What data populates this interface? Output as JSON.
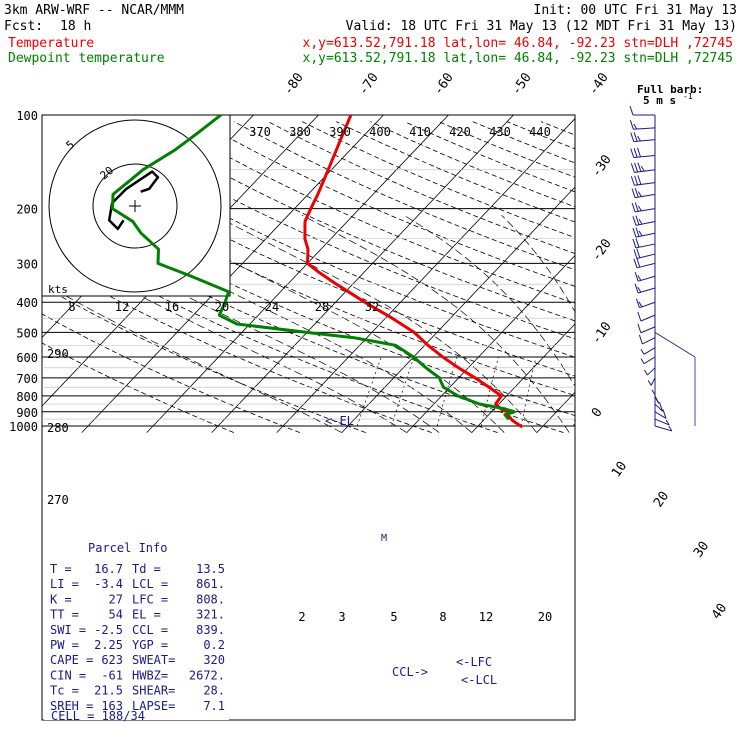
{
  "header": {
    "model": "3km ARW-WRF -- NCAR/MMM",
    "init": "Init: 00 UTC Fri 31 May 13",
    "fcst_label": "Fcst:",
    "fcst_value": "18 h",
    "valid": "Valid: 18 UTC Fri 31 May 13 (12 MDT Fri 31 May 13)",
    "temp_label": "Temperature",
    "dew_label": "Dewpoint temperature",
    "temp_loc": "x,y=613.52,791.18   lat,lon= 46.84, -92.23  stn=DLH ,72745",
    "dew_loc": "x,y=613.52,791.18   lat,lon= 46.84, -92.23  stn=DLH ,72745",
    "barb_note_1": "Full barb:",
    "barb_note_2": "5 m s",
    "barb_note_exp": "-1"
  },
  "colors": {
    "temperature": "#ee0000",
    "dewpoint": "#008000",
    "lines": "#000000",
    "barbs": "#1a1a8c",
    "text_header": "#000000"
  },
  "chart_data": {
    "type": "line",
    "diagram": "skew-T log-P",
    "pressure_ticks": [
      "100",
      "200",
      "300",
      "400",
      "500",
      "600",
      "700",
      "800",
      "900",
      "1000"
    ],
    "isotherm_labels": [
      "-80",
      "-70",
      "-60",
      "-50",
      "-40",
      "-30",
      "-20",
      "-10",
      "0",
      "10",
      "20",
      "30",
      "40"
    ],
    "theta_e_labels": [
      "370",
      "380",
      "390",
      "400",
      "410",
      "420",
      "430",
      "440"
    ],
    "theta_labels": [
      "290",
      "280",
      "270"
    ],
    "mixing_ratio_labels": [
      "2",
      "3",
      "5",
      "8",
      "12",
      "20"
    ],
    "hodograph": {
      "unit": "kts",
      "ring_labels": [
        "20",
        "5"
      ],
      "speed_axis": [
        "8",
        "12",
        "16",
        "20",
        "24",
        "28",
        "32"
      ],
      "trace_kts": [
        [
          -4,
          -5
        ],
        [
          -6,
          -8
        ],
        [
          -9,
          -5
        ],
        [
          -8,
          1
        ],
        [
          -3,
          6
        ],
        [
          6,
          12
        ],
        [
          8,
          10
        ],
        [
          5,
          6
        ],
        [
          2,
          5
        ]
      ]
    },
    "series": [
      {
        "name": "Temperature",
        "points": [
          [
            1003,
            16.7
          ],
          [
            960,
            14.5
          ],
          [
            935,
            13.5
          ],
          [
            910,
            12.6
          ],
          [
            900,
            13.0
          ],
          [
            890,
            11.5
          ],
          [
            870,
            10.5
          ],
          [
            850,
            9.5
          ],
          [
            800,
            9.2
          ],
          [
            750,
            6.0
          ],
          [
            700,
            2.5
          ],
          [
            650,
            -1.5
          ],
          [
            600,
            -5.5
          ],
          [
            550,
            -9.5
          ],
          [
            500,
            -13.5
          ],
          [
            450,
            -19.0
          ],
          [
            400,
            -25.5
          ],
          [
            350,
            -32.5
          ],
          [
            320,
            -37.0
          ],
          [
            300,
            -40.0
          ],
          [
            270,
            -42.0
          ],
          [
            250,
            -44.0
          ],
          [
            220,
            -46.5
          ],
          [
            200,
            -47.5
          ],
          [
            180,
            -48.5
          ],
          [
            150,
            -50.5
          ],
          [
            120,
            -53.0
          ],
          [
            100,
            -55.0
          ]
        ]
      },
      {
        "name": "Dewpoint temperature",
        "points": [
          [
            945,
            13.5
          ],
          [
            920,
            12.5
          ],
          [
            900,
            13.5
          ],
          [
            880,
            11.5
          ],
          [
            850,
            7.0
          ],
          [
            800,
            2.5
          ],
          [
            750,
            -1.0
          ],
          [
            700,
            -3.0
          ],
          [
            650,
            -6.5
          ],
          [
            600,
            -10.0
          ],
          [
            550,
            -14.5
          ],
          [
            520,
            -22.0
          ],
          [
            500,
            -30.0
          ],
          [
            470,
            -42.0
          ],
          [
            440,
            -46.0
          ],
          [
            400,
            -47.0
          ],
          [
            370,
            -48.0
          ],
          [
            330,
            -56.0
          ],
          [
            300,
            -63.0
          ],
          [
            270,
            -65.0
          ],
          [
            240,
            -70.0
          ],
          [
            220,
            -73.0
          ],
          [
            200,
            -78.0
          ],
          [
            180,
            -80.0
          ],
          [
            150,
            -79.0
          ],
          [
            130,
            -77.0
          ],
          [
            115,
            -76.0
          ],
          [
            100,
            -75.0
          ]
        ]
      }
    ],
    "annotations": {
      "el": "<-EL",
      "lfc": "<-LFC",
      "lcl": "<-LCL",
      "ccl": "CCL->",
      "marker": "M"
    },
    "wind_barbs": [
      {
        "p": 100,
        "spd": 10,
        "dir": 270
      },
      {
        "p": 110,
        "spd": 15,
        "dir": 260
      },
      {
        "p": 120,
        "spd": 25,
        "dir": 255
      },
      {
        "p": 135,
        "spd": 30,
        "dir": 255
      },
      {
        "p": 150,
        "spd": 35,
        "dir": 250
      },
      {
        "p": 165,
        "spd": 30,
        "dir": 250
      },
      {
        "p": 180,
        "spd": 25,
        "dir": 245
      },
      {
        "p": 200,
        "spd": 25,
        "dir": 245
      },
      {
        "p": 220,
        "spd": 25,
        "dir": 240
      },
      {
        "p": 240,
        "spd": 25,
        "dir": 240
      },
      {
        "p": 260,
        "spd": 20,
        "dir": 240
      },
      {
        "p": 280,
        "spd": 20,
        "dir": 235
      },
      {
        "p": 300,
        "spd": 20,
        "dir": 235
      },
      {
        "p": 330,
        "spd": 15,
        "dir": 230
      },
      {
        "p": 360,
        "spd": 15,
        "dir": 230
      },
      {
        "p": 400,
        "spd": 15,
        "dir": 225
      },
      {
        "p": 440,
        "spd": 10,
        "dir": 220
      },
      {
        "p": 480,
        "spd": 10,
        "dir": 220
      },
      {
        "p": 520,
        "spd": 10,
        "dir": 215
      },
      {
        "p": 560,
        "spd": 5,
        "dir": 210
      },
      {
        "p": 600,
        "spd": 5,
        "dir": 210
      },
      {
        "p": 650,
        "spd": 5,
        "dir": 200
      },
      {
        "p": 700,
        "spd": 5,
        "dir": 190
      },
      {
        "p": 750,
        "spd": 5,
        "dir": 180
      },
      {
        "p": 800,
        "spd": 5,
        "dir": 170
      },
      {
        "p": 850,
        "spd": 10,
        "dir": 160
      },
      {
        "p": 900,
        "spd": 10,
        "dir": 150
      },
      {
        "p": 950,
        "spd": 5,
        "dir": 140
      },
      {
        "p": 1000,
        "spd": 5,
        "dir": 130
      }
    ]
  },
  "parcel_info": {
    "title": "Parcel Info",
    "rows": [
      [
        "T  =",
        "16.7",
        "Td =",
        "13.5"
      ],
      [
        "LI =",
        "-3.4",
        "LCL =",
        "861."
      ],
      [
        "K  =",
        "27",
        "LFC =",
        "808."
      ],
      [
        "TT =",
        "54",
        "EL  =",
        "321."
      ],
      [
        "SWI =",
        "-2.5",
        "CCL =",
        "839."
      ],
      [
        "PW =",
        "2.25",
        "YGP =",
        "0.2"
      ],
      [
        "CAPE =",
        "623",
        "SWEAT=",
        "320"
      ],
      [
        "CIN =",
        "-61",
        "HWBZ=",
        "2672."
      ],
      [
        "Tc =",
        "21.5",
        "SHEAR=",
        "28."
      ],
      [
        "SREH =",
        "163",
        "LAPSE=",
        "7.1"
      ]
    ],
    "cell": "CELL = 188/34"
  }
}
